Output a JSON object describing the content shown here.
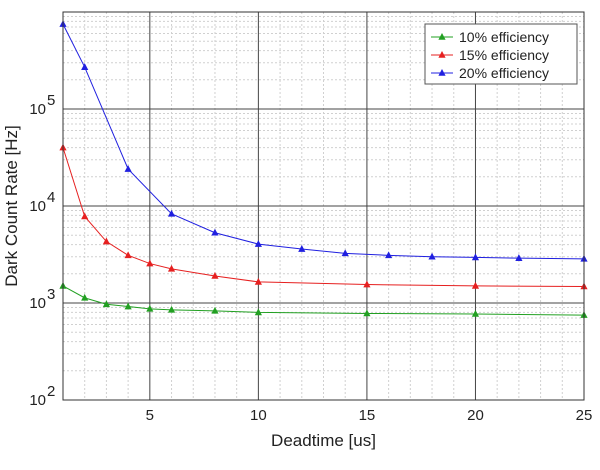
{
  "chart_data": {
    "type": "line",
    "title": "",
    "xlabel": "Deadtime [us]",
    "ylabel": "Dark Count Rate [Hz]",
    "xlim": [
      1,
      25
    ],
    "ylim": [
      100,
      1000000
    ],
    "y_scale": "log",
    "x_ticks": [
      5,
      10,
      15,
      20,
      25
    ],
    "x_tick_labels": [
      "5",
      "10",
      "15",
      "20",
      "25"
    ],
    "y_ticks": [
      100,
      1000,
      10000,
      100000
    ],
    "y_tick_labels": [
      {
        "base": "10",
        "exp": "2"
      },
      {
        "base": "10",
        "exp": "3"
      },
      {
        "base": "10",
        "exp": "4"
      },
      {
        "base": "10",
        "exp": "5"
      }
    ],
    "grid": "major solid, minor dashed",
    "legend_position": "top-right",
    "series": [
      {
        "name": "10% efficiency",
        "color": "#22a022",
        "marker": "triangle",
        "x": [
          1,
          2,
          3,
          4,
          5,
          6,
          8,
          10,
          15,
          20,
          25
        ],
        "y": [
          1500,
          1130,
          970,
          920,
          870,
          850,
          830,
          800,
          780,
          770,
          750
        ]
      },
      {
        "name": "15% efficiency",
        "color": "#e62020",
        "marker": "triangle",
        "x": [
          1,
          2,
          3,
          4,
          5,
          6,
          8,
          10,
          15,
          20,
          25
        ],
        "y": [
          40000,
          7800,
          4300,
          3100,
          2550,
          2250,
          1900,
          1650,
          1550,
          1500,
          1480
        ]
      },
      {
        "name": "20% efficiency",
        "color": "#2020e0",
        "marker": "triangle",
        "x": [
          1,
          2,
          4,
          6,
          8,
          10,
          12,
          14,
          16,
          18,
          20,
          22,
          25
        ],
        "y": [
          750000,
          270000,
          24000,
          8300,
          5300,
          4050,
          3600,
          3250,
          3100,
          3000,
          2950,
          2900,
          2850
        ]
      }
    ]
  }
}
